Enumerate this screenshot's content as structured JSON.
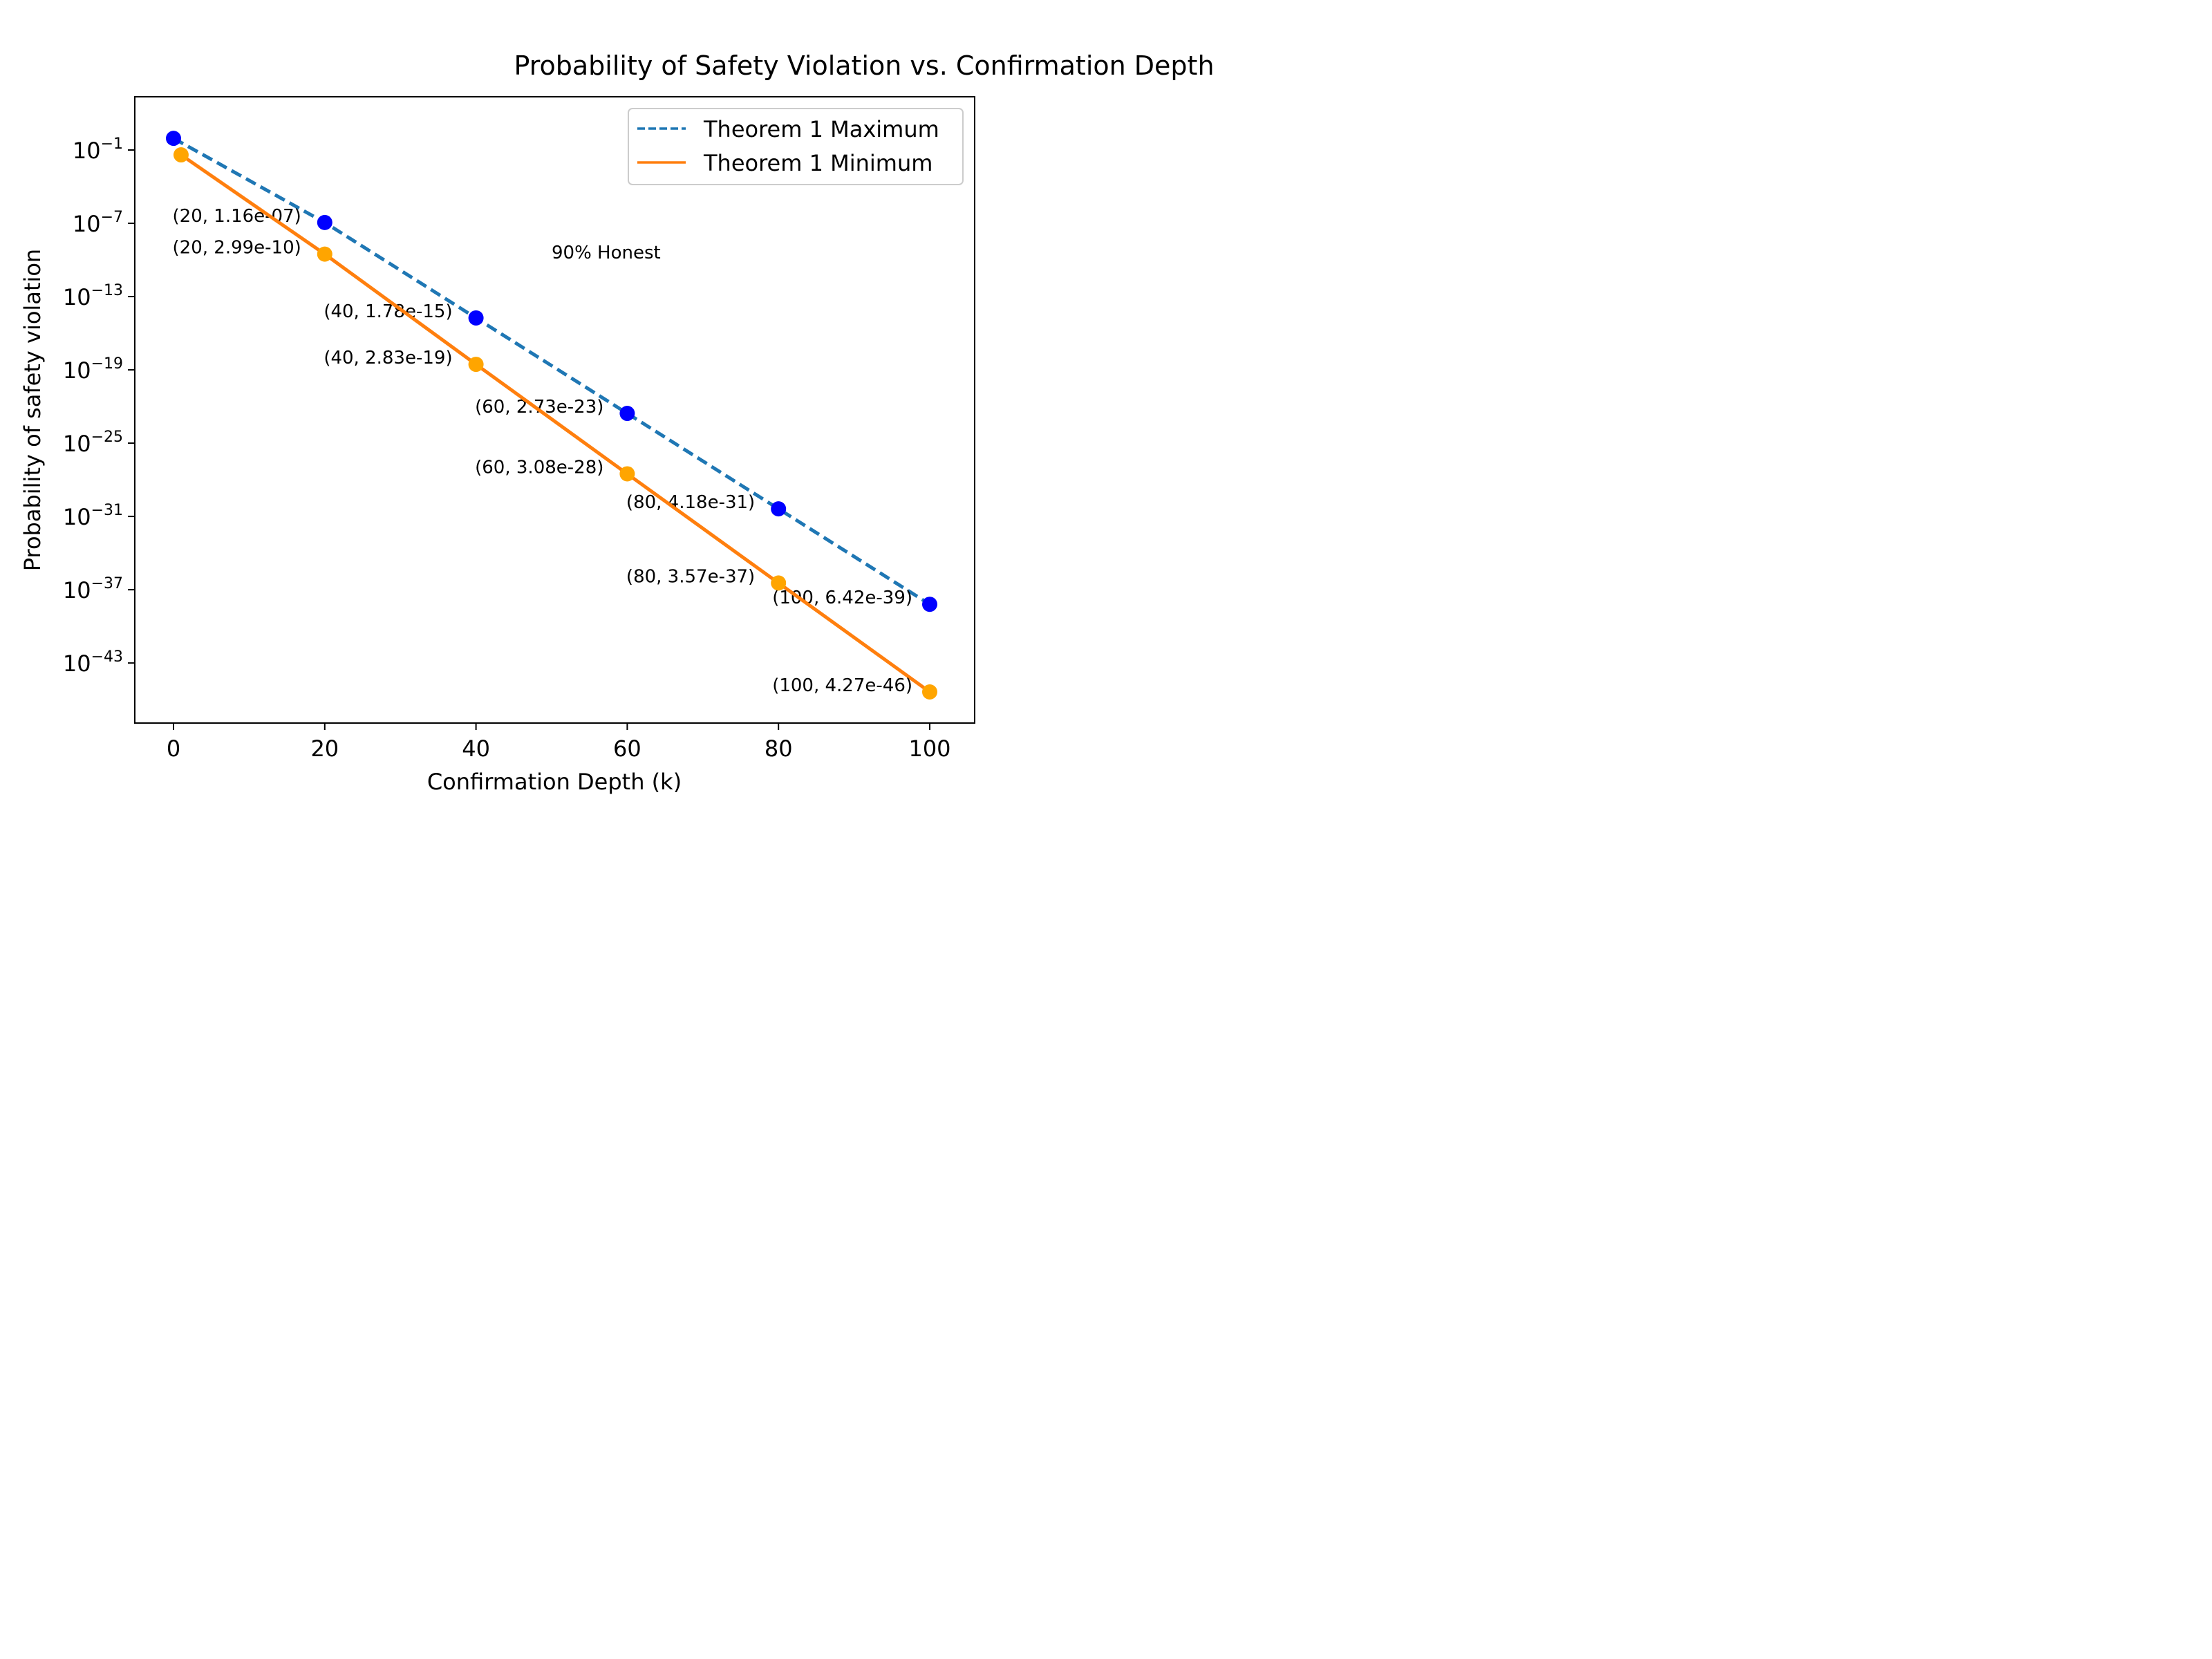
{
  "chart_data": {
    "type": "line",
    "title": "Probability of Safety Violation vs. Confirmation Depth",
    "xlabel": "Confirmation Depth (k)",
    "ylabel": "Probability of safety violation",
    "yscale": "log",
    "xlim": [
      -5,
      106
    ],
    "ylim_log10": [
      -46,
      3.5
    ],
    "x_ticks": [
      {
        "value": 0,
        "label": "0"
      },
      {
        "value": 20,
        "label": "20"
      },
      {
        "value": 40,
        "label": "40"
      },
      {
        "value": 60,
        "label": "60"
      },
      {
        "value": 80,
        "label": "80"
      },
      {
        "value": 100,
        "label": "100"
      }
    ],
    "y_ticks": [
      {
        "log10": -1,
        "base": "10",
        "exp": "−1"
      },
      {
        "log10": -7,
        "base": "10",
        "exp": "−7"
      },
      {
        "log10": -13,
        "base": "10",
        "exp": "−13"
      },
      {
        "log10": -19,
        "base": "10",
        "exp": "−19"
      },
      {
        "log10": -25,
        "base": "10",
        "exp": "−25"
      },
      {
        "log10": -31,
        "base": "10",
        "exp": "−31"
      },
      {
        "log10": -37,
        "base": "10",
        "exp": "−37"
      },
      {
        "log10": -43,
        "base": "10",
        "exp": "−43"
      }
    ],
    "annotation": "90% Honest",
    "legend": {
      "position": "top-right"
    },
    "series": [
      {
        "name": "Theorem 1 Maximum",
        "line_style": "dashed",
        "line_color": "#1f77b4",
        "marker_color": "#0000ff",
        "x": [
          0,
          20,
          40,
          60,
          80,
          100
        ],
        "y": [
          0.9,
          1.16e-07,
          1.78e-15,
          2.73e-23,
          4.18e-31,
          6.42e-39
        ],
        "point_labels": [
          "",
          "(20, 1.16e-07)",
          "(40, 1.78e-15)",
          "(60, 2.73e-23)",
          "(80, 4.18e-31)",
          "(100, 6.42e-39)"
        ]
      },
      {
        "name": "Theorem 1 Minimum",
        "line_style": "solid",
        "line_color": "#ff7f0e",
        "marker_color": "#ffa500",
        "x": [
          1,
          20,
          40,
          60,
          80,
          100
        ],
        "y": [
          0.04,
          2.99e-10,
          2.83e-19,
          3.08e-28,
          3.57e-37,
          4.27e-46
        ],
        "point_labels": [
          "",
          "(20, 2.99e-10)",
          "(40, 2.83e-19)",
          "(60, 3.08e-28)",
          "(80, 3.57e-37)",
          "(100, 4.27e-46)"
        ]
      }
    ]
  }
}
